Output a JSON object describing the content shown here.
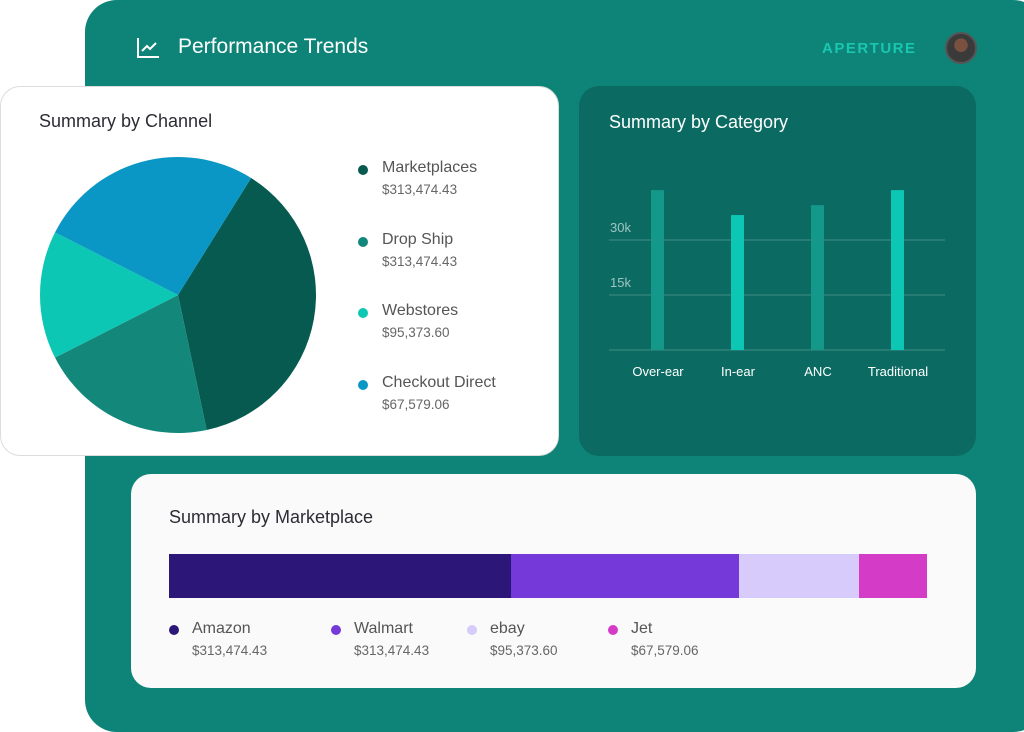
{
  "header": {
    "title": "Performance Trends",
    "brand": "APERTURE"
  },
  "chart_data": [
    {
      "type": "pie",
      "title": "Summary by Channel",
      "slices": [
        {
          "label": "Marketplaces",
          "value": "$313,474.43",
          "share": 136,
          "color": "#065a4f"
        },
        {
          "label": "Drop Ship",
          "value": "$313,474.43",
          "share": 75,
          "color": "#14877b"
        },
        {
          "label": "Webstores",
          "value": "$95,373.60",
          "share": 54,
          "color": "#0cc7b3"
        },
        {
          "label": "Checkout Direct",
          "value": "$67,579.06",
          "share": 95,
          "color": "#0b97c6"
        }
      ]
    },
    {
      "type": "bar",
      "title": "Summary by Category",
      "categories": [
        "Over-ear",
        "In-ear",
        "ANC",
        "Traditional"
      ],
      "values": [
        43600,
        36800,
        39500,
        43600
      ],
      "colors": [
        "#13988a",
        "#0cc7b3",
        "#13988a",
        "#0cc7b3"
      ],
      "yticks": [
        {
          "value": 15000,
          "label": "15k"
        },
        {
          "value": 30000,
          "label": "30k"
        }
      ],
      "ylim": [
        0,
        45000
      ]
    },
    {
      "type": "bar",
      "title": "Summary by Marketplace",
      "orientation": "stacked-horizontal",
      "segments": [
        {
          "label": "Amazon",
          "value": "$313,474.43",
          "share": 342,
          "color": "#2c1677"
        },
        {
          "label": "Walmart",
          "value": "$313,474.43",
          "share": 228,
          "color": "#7439d8"
        },
        {
          "label": "ebay",
          "value": "$95,373.60",
          "share": 120,
          "color": "#d6cbfb"
        },
        {
          "label": "Jet",
          "value": "$67,579.06",
          "share": 68,
          "color": "#d43cc8"
        }
      ]
    }
  ]
}
